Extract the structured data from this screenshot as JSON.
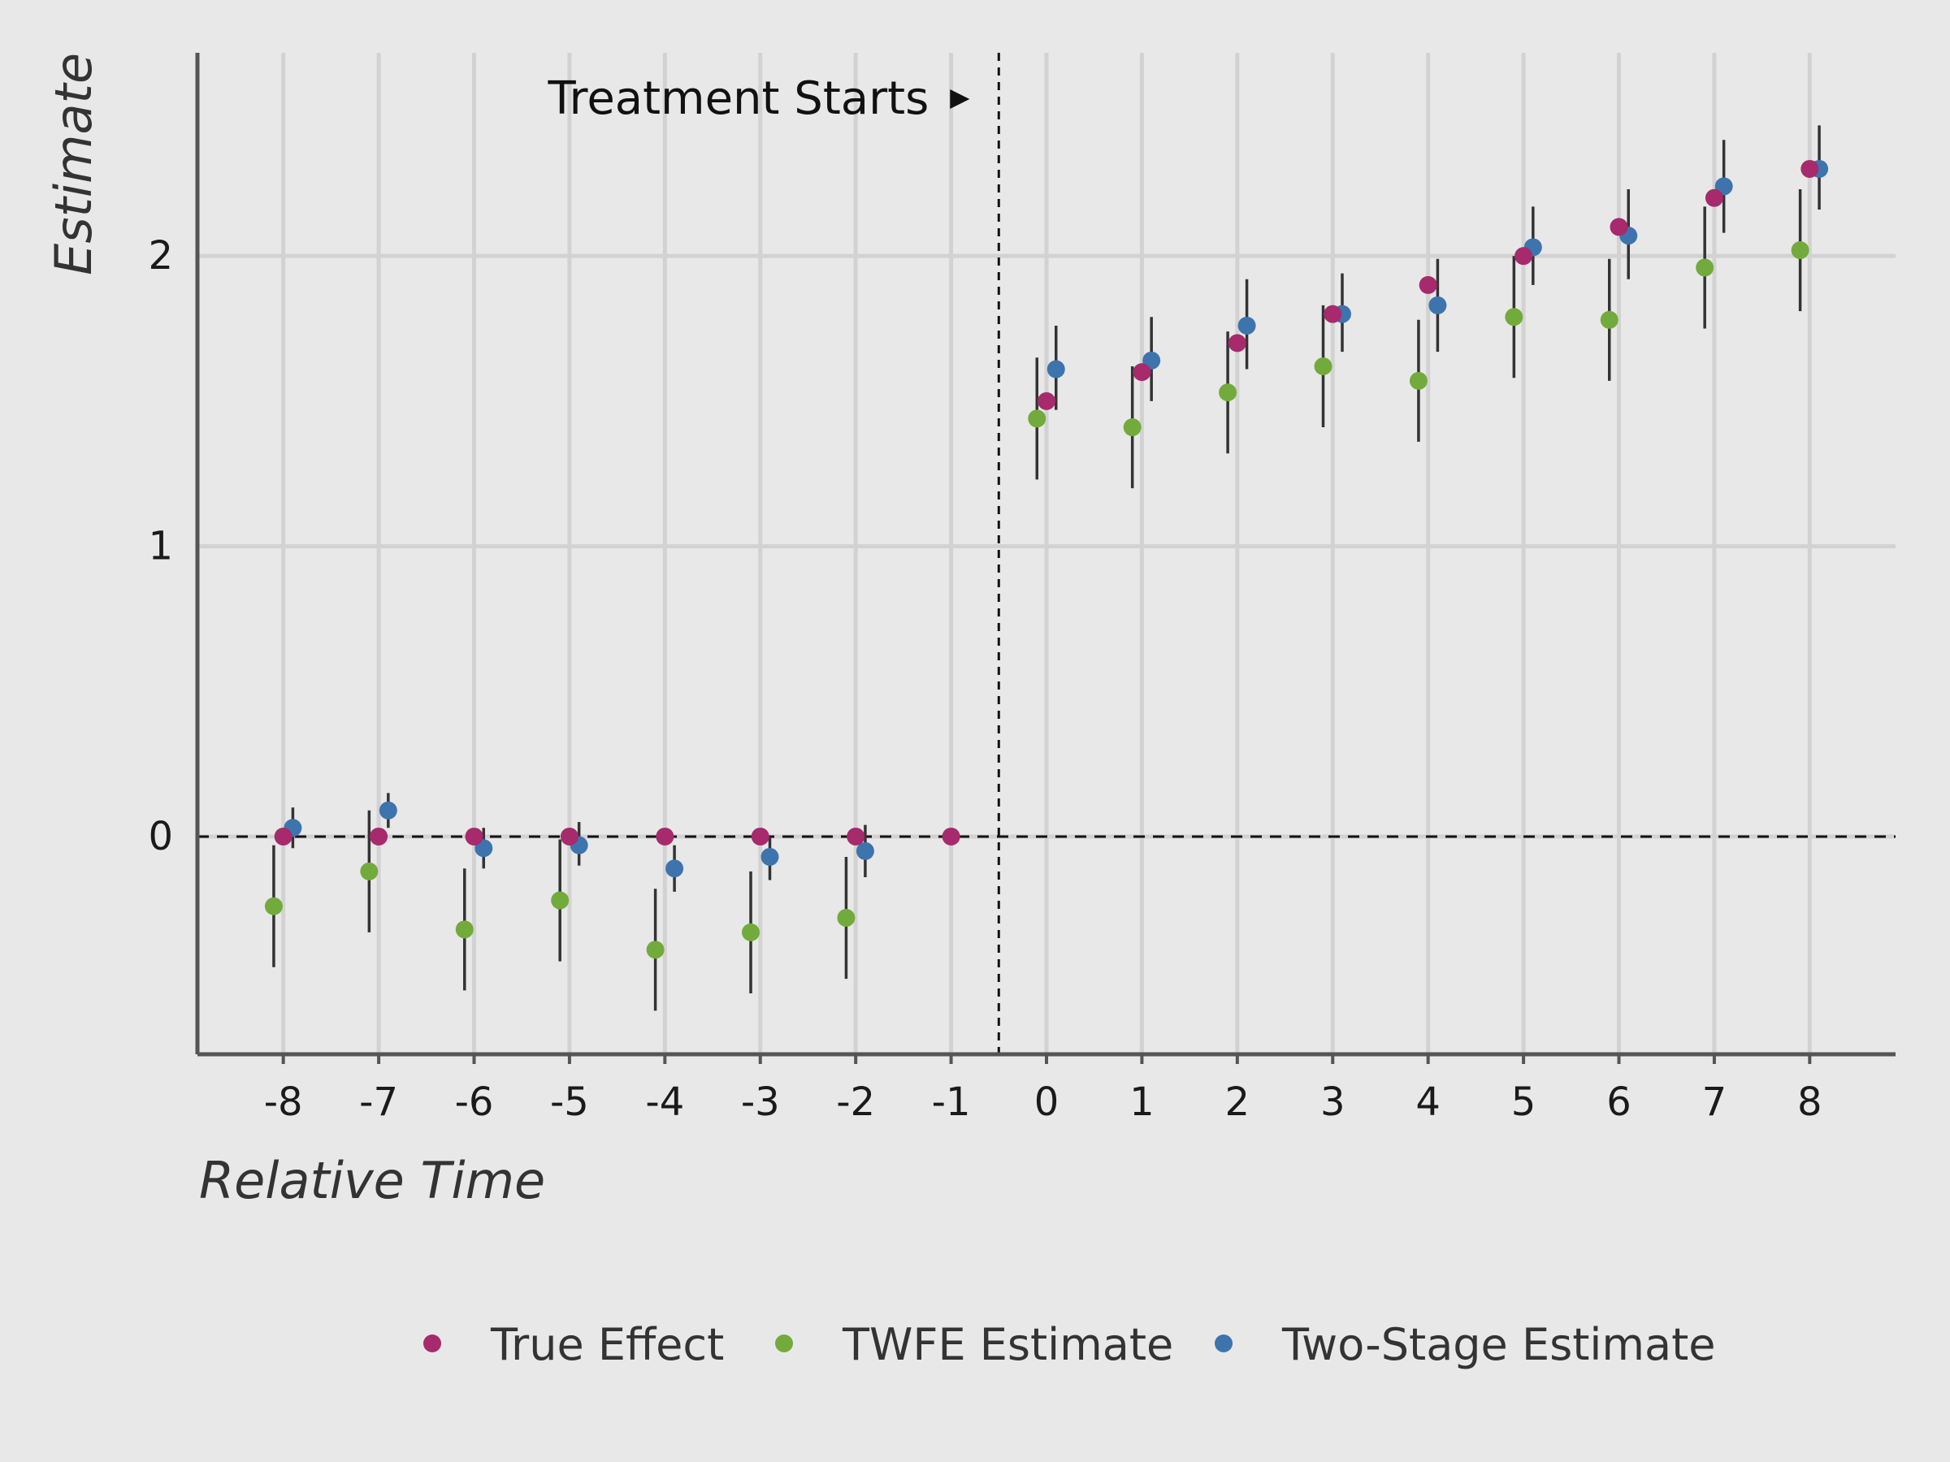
{
  "chart_data": {
    "type": "scatter",
    "title": "",
    "xlabel": "Relative Time",
    "ylabel": "Estimate",
    "x": [
      -8,
      -7,
      -6,
      -5,
      -4,
      -3,
      -2,
      -1,
      0,
      1,
      2,
      3,
      4,
      5,
      6,
      7,
      8
    ],
    "x_tick_labels": [
      "-8",
      "-7",
      "-6",
      "-5",
      "-4",
      "-3",
      "-2",
      "-1",
      "0",
      "1",
      "2",
      "3",
      "4",
      "5",
      "6",
      "7",
      "8"
    ],
    "y_ticks": [
      0,
      1,
      2
    ],
    "y_tick_labels": [
      "0",
      "1",
      "2"
    ],
    "xlim": [
      -8.9,
      8.9
    ],
    "ylim": [
      -0.75,
      2.7
    ],
    "grid": true,
    "legend_position": "bottom",
    "annotation": {
      "text": "Treatment Starts",
      "x": -0.5
    },
    "reference_lines": {
      "horizontal_y": 0,
      "vertical_x": -0.5
    },
    "series": [
      {
        "name": "True Effect",
        "color": "#a62a6c",
        "offset": 0,
        "values": [
          0,
          0,
          0,
          0,
          0,
          0,
          0,
          0,
          1.5,
          1.6,
          1.7,
          1.8,
          1.9,
          2.0,
          2.1,
          2.2,
          2.3
        ],
        "ci_low": null,
        "ci_high": null
      },
      {
        "name": "TWFE Estimate",
        "color": "#72ab3c",
        "offset": -0.1,
        "values": [
          -0.24,
          -0.12,
          -0.32,
          -0.22,
          -0.39,
          -0.33,
          -0.28,
          null,
          1.44,
          1.41,
          1.53,
          1.62,
          1.57,
          1.79,
          1.78,
          1.96,
          2.02
        ],
        "ci_low": [
          -0.45,
          -0.33,
          -0.53,
          -0.43,
          -0.6,
          -0.54,
          -0.49,
          null,
          1.23,
          1.2,
          1.32,
          1.41,
          1.36,
          1.58,
          1.57,
          1.75,
          1.81
        ],
        "ci_high": [
          -0.03,
          0.09,
          -0.11,
          -0.01,
          -0.18,
          -0.12,
          -0.07,
          null,
          1.65,
          1.62,
          1.74,
          1.83,
          1.78,
          2.0,
          1.99,
          2.17,
          2.23
        ]
      },
      {
        "name": "Two-Stage Estimate",
        "color": "#3e74ad",
        "offset": 0.1,
        "values": [
          0.03,
          0.09,
          -0.04,
          -0.03,
          -0.11,
          -0.07,
          -0.05,
          null,
          1.61,
          1.64,
          1.76,
          1.8,
          1.83,
          2.03,
          2.07,
          2.24,
          2.3
        ],
        "ci_low": [
          -0.04,
          0.03,
          -0.11,
          -0.1,
          -0.19,
          -0.15,
          -0.14,
          null,
          1.47,
          1.5,
          1.61,
          1.67,
          1.67,
          1.9,
          1.92,
          2.08,
          2.16
        ],
        "ci_high": [
          0.1,
          0.15,
          0.03,
          0.05,
          -0.03,
          0.0,
          0.04,
          null,
          1.76,
          1.79,
          1.92,
          1.94,
          1.99,
          2.17,
          2.23,
          2.4,
          2.45
        ]
      }
    ]
  }
}
